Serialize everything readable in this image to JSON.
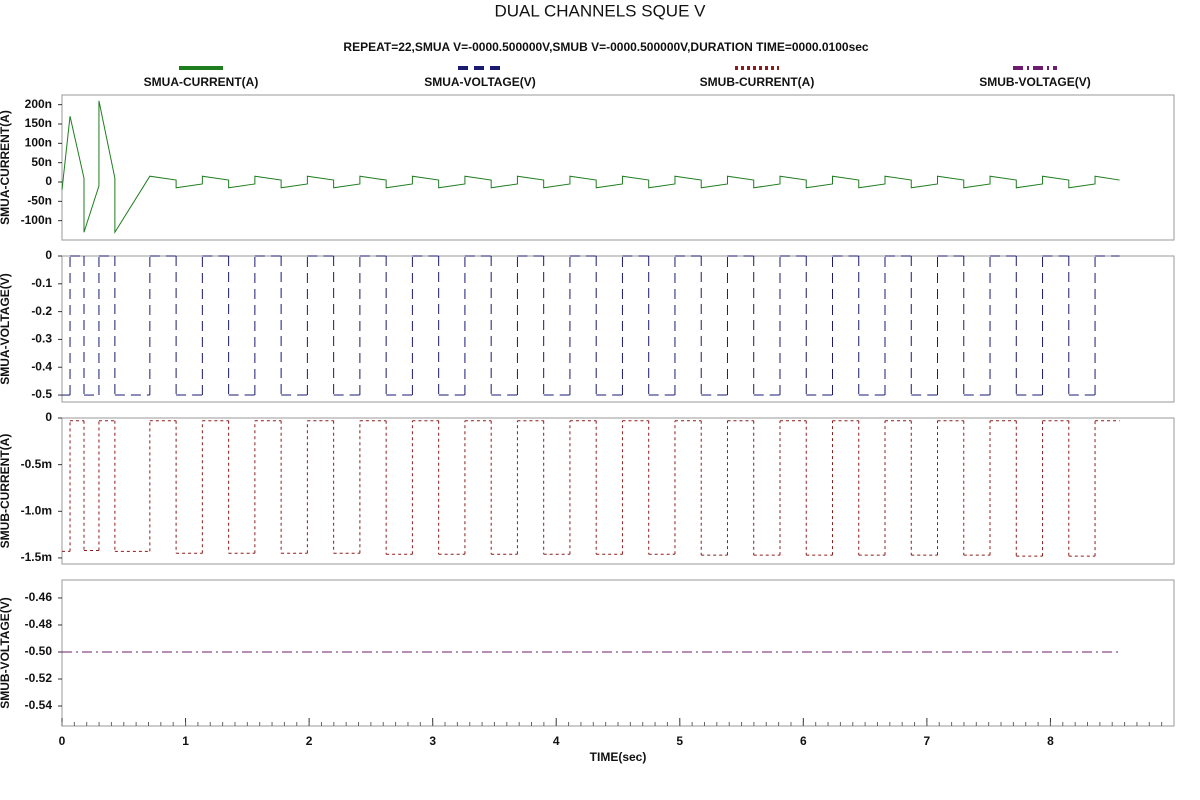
{
  "chart_data": [
    {
      "type": "line",
      "title": "DUAL CHANNELS SQUE V",
      "subtitle": "REPEAT=22,SMUA V=-0000.500000V,SMUB V=-0000.500000V,DURATION TIME=0000.0100sec",
      "ylabel": "SMUA-CURRENT(A)",
      "xlim": [
        0,
        9
      ],
      "ylim": [
        -1.5e-07,
        2.25e-07
      ],
      "yticks": [
        {
          "value": 2e-07,
          "label": "200n"
        },
        {
          "value": 1.5e-07,
          "label": "150n"
        },
        {
          "value": 1e-07,
          "label": "100n"
        },
        {
          "value": 5e-08,
          "label": "50n"
        },
        0,
        {
          "value": -5e-08,
          "label": "-50n"
        },
        {
          "value": -1e-07,
          "label": "-100n"
        }
      ],
      "x": [
        0,
        0.065,
        0.178,
        0.178,
        0.299,
        0.299,
        0.428,
        0.428,
        0.711,
        0.9235,
        0.9235,
        1.136,
        1.136,
        1.3485,
        1.3485,
        1.561,
        1.561,
        1.7735,
        1.7735,
        1.986,
        1.986,
        2.1985,
        2.1985,
        2.411,
        2.411,
        2.6235,
        2.6235,
        2.836,
        2.836,
        3.0485,
        3.0485,
        3.261,
        3.261,
        3.4735,
        3.4735,
        3.686,
        3.686,
        3.8985,
        3.8985,
        4.111,
        4.111,
        4.3235,
        4.3235,
        4.536,
        4.536,
        4.7485,
        4.7485,
        4.961,
        4.961,
        5.1735,
        5.1735,
        5.386,
        5.386,
        5.5985,
        5.5985,
        5.811,
        5.811,
        6.0235,
        6.0235,
        6.236,
        6.236,
        6.4485,
        6.4485,
        6.661,
        6.661,
        6.8735,
        6.8735,
        7.086,
        7.086,
        7.2985,
        7.2985,
        7.511,
        7.511,
        7.7235,
        7.7235,
        7.936,
        7.936,
        8.1485,
        8.1485,
        8.361,
        8.361,
        8.56
      ],
      "series": [
        {
          "name": "SMUA-CURRENT(A)",
          "color": "#1e7d1e",
          "line_style": "solid",
          "values": [
            -2e-08,
            1.7e-07,
            1e-08,
            -1.3e-07,
            -1e-08,
            2.1e-07,
            1e-08,
            -1.3e-07,
            1.5e-08,
            5e-09,
            -1.5e-08,
            -5e-09,
            1.5e-08,
            5e-09,
            -1.5e-08,
            -5e-09,
            1.5e-08,
            5e-09,
            -1.5e-08,
            -5e-09,
            1.5e-08,
            5e-09,
            -1.5e-08,
            -5e-09,
            1.5e-08,
            5e-09,
            -1.5e-08,
            -5e-09,
            1.5e-08,
            5e-09,
            -1.5e-08,
            -5e-09,
            1.5e-08,
            5e-09,
            -1.5e-08,
            -5e-09,
            1.5e-08,
            5e-09,
            -1.5e-08,
            -5e-09,
            1.5e-08,
            5e-09,
            -1.5e-08,
            -5e-09,
            1.5e-08,
            5e-09,
            -1.5e-08,
            -5e-09,
            1.5e-08,
            5e-09,
            -1.5e-08,
            -5e-09,
            1.5e-08,
            5e-09,
            -1.5e-08,
            -5e-09,
            1.5e-08,
            5e-09,
            -1.5e-08,
            -5e-09,
            1.5e-08,
            5e-09,
            -1.5e-08,
            -5e-09,
            1.5e-08,
            5e-09,
            -1.5e-08,
            -5e-09,
            1.5e-08,
            5e-09,
            -1.5e-08,
            -5e-09,
            1.5e-08,
            5e-09,
            -1.5e-08,
            -5e-09,
            1.5e-08,
            5e-09,
            -1.5e-08,
            -5e-09,
            1.5e-08,
            5e-09
          ]
        }
      ]
    },
    {
      "type": "step",
      "ylabel": "SMUA-VOLTAGE(V)",
      "xlim": [
        0,
        9
      ],
      "ylim": [
        -0.525,
        0
      ],
      "yticks": [
        0,
        -0.1,
        -0.2,
        -0.3,
        -0.4,
        -0.5
      ],
      "x": [
        0,
        0.065,
        0.178,
        0.299,
        0.428,
        0.711,
        0.9235,
        1.136,
        1.3485,
        1.561,
        1.7735,
        1.986,
        2.1985,
        2.411,
        2.6235,
        2.836,
        3.0485,
        3.261,
        3.4735,
        3.686,
        3.8985,
        4.111,
        4.3235,
        4.536,
        4.7485,
        4.961,
        5.1735,
        5.386,
        5.5985,
        5.811,
        6.0235,
        6.236,
        6.4485,
        6.661,
        6.8735,
        7.086,
        7.2985,
        7.511,
        7.7235,
        7.936,
        8.1485,
        8.361,
        8.56
      ],
      "series": [
        {
          "name": "SMUA-VOLTAGE(V)",
          "color": "#1a1a70",
          "line_style": "dashed",
          "values": [
            -0.5,
            0,
            -0.5,
            0,
            -0.5,
            0,
            -0.5,
            0,
            -0.5,
            0,
            -0.5,
            0,
            -0.5,
            0,
            -0.5,
            0,
            -0.5,
            0,
            -0.5,
            0,
            -0.5,
            0,
            -0.5,
            0,
            -0.5,
            0,
            -0.5,
            0,
            -0.5,
            0,
            -0.5,
            0,
            -0.5,
            0,
            -0.5,
            0,
            -0.5,
            0,
            -0.5,
            0,
            -0.5,
            0,
            0
          ]
        }
      ]
    },
    {
      "type": "step",
      "ylabel": "SMUB-CURRENT(A)",
      "xlim": [
        0,
        9
      ],
      "ylim": [
        -0.001565,
        0
      ],
      "yticks": [
        0,
        {
          "value": -0.0005,
          "label": "-0.5m"
        },
        {
          "value": -0.001,
          "label": "-1.0m"
        },
        {
          "value": -0.0015,
          "label": "-1.5m"
        }
      ],
      "x": [
        0,
        0.065,
        0.178,
        0.299,
        0.428,
        0.711,
        0.9235,
        1.136,
        1.3485,
        1.561,
        1.7735,
        1.986,
        2.1985,
        2.411,
        2.6235,
        2.836,
        3.0485,
        3.261,
        3.4735,
        3.686,
        3.8985,
        4.111,
        4.3235,
        4.536,
        4.7485,
        4.961,
        5.1735,
        5.386,
        5.5985,
        5.811,
        6.0235,
        6.236,
        6.4485,
        6.661,
        6.8735,
        7.086,
        7.2985,
        7.511,
        7.7235,
        7.936,
        8.1485,
        8.361,
        8.56
      ],
      "series": [
        {
          "name": "SMUB-CURRENT(A)",
          "color": "#8b1c1c",
          "line_style": "dotted",
          "values": [
            -0.00143,
            -3e-05,
            -0.00142,
            -3e-05,
            -0.00143,
            -3e-05,
            -0.00145,
            -3e-05,
            -0.00145,
            -3e-05,
            -0.00145,
            -3e-05,
            -0.00145,
            -3e-05,
            -0.00146,
            -3e-05,
            -0.00146,
            -3e-05,
            -0.00146,
            -3e-05,
            -0.00146,
            -3e-05,
            -0.00146,
            -3e-05,
            -0.00146,
            -3e-05,
            -0.00147,
            -3e-05,
            -0.00147,
            -3e-05,
            -0.00147,
            -3e-05,
            -0.00147,
            -3e-05,
            -0.00147,
            -3e-05,
            -0.00147,
            -3e-05,
            -0.00148,
            -3e-05,
            -0.00148,
            -3e-05,
            -3e-05
          ]
        }
      ]
    },
    {
      "type": "line",
      "ylabel": "SMUB-VOLTAGE(V)",
      "xlabel": "TIME(sec)",
      "xlim": [
        0,
        9
      ],
      "ylim": [
        -0.5548,
        -0.4467
      ],
      "xticks": [
        0,
        1,
        2,
        3,
        4,
        5,
        6,
        7,
        8
      ],
      "yticks": [
        -0.46,
        -0.48,
        {
          "value": -0.5,
          "label": "-0.50"
        },
        -0.52,
        -0.54
      ],
      "x": [
        0,
        8.56
      ],
      "series": [
        {
          "name": "SMUB-VOLTAGE(V)",
          "color": "#6e1c6e",
          "line_style": "dashdot",
          "values": [
            -0.5,
            -0.5
          ]
        }
      ]
    }
  ]
}
